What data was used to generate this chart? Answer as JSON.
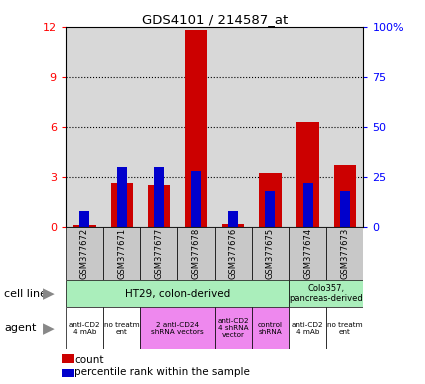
{
  "title": "GDS4101 / 214587_at",
  "samples": [
    "GSM377672",
    "GSM377671",
    "GSM377677",
    "GSM377678",
    "GSM377676",
    "GSM377675",
    "GSM377674",
    "GSM377673"
  ],
  "count_values": [
    0.1,
    2.6,
    2.5,
    11.8,
    0.15,
    3.2,
    6.3,
    3.7
  ],
  "percentile_values": [
    8,
    30,
    30,
    28,
    8,
    18,
    22,
    18
  ],
  "bar_width": 0.6,
  "ylim_left": [
    0,
    12
  ],
  "ylim_right": [
    0,
    100
  ],
  "yticks_left": [
    0,
    3,
    6,
    9,
    12
  ],
  "ytick_labels_left": [
    "0",
    "3",
    "6",
    "9",
    "12"
  ],
  "yticks_right": [
    0,
    25,
    50,
    75,
    100
  ],
  "ytick_labels_right": [
    "0",
    "25",
    "50",
    "75",
    "100%"
  ],
  "count_color": "#cc0000",
  "percentile_color": "#0000cc",
  "bar_area_bg": "#d8d8d8",
  "sample_box_bg": "#c8c8c8",
  "cell_line_color": "#aaeebb",
  "agent_colors_list": [
    "#ffffff",
    "#ffffff",
    "#ee88ee",
    "#ee88ee",
    "#ee88ee",
    "#ffffff",
    "#ffffff"
  ],
  "agent_info": [
    [
      0,
      1,
      "anti-CD2\n4 mAb"
    ],
    [
      1,
      2,
      "no treatm\nent"
    ],
    [
      2,
      4,
      "2 anti-CD24\nshRNA vectors"
    ],
    [
      4,
      5,
      "anti-CD2\n4 shRNA\nvector"
    ],
    [
      5,
      6,
      "control\nshRNA"
    ],
    [
      6,
      7,
      "anti-CD2\n4 mAb"
    ],
    [
      7,
      8,
      "no treatm\nent"
    ]
  ]
}
